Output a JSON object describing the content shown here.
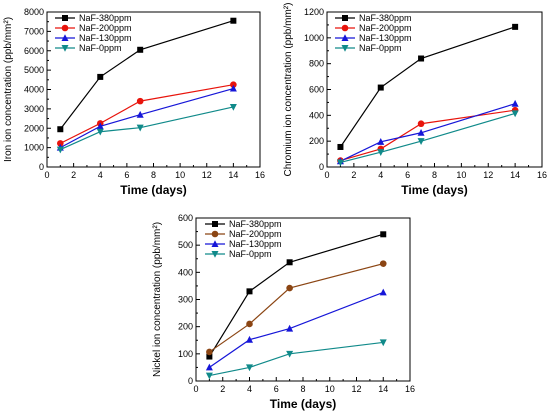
{
  "chart_data": [
    {
      "type": "line",
      "xlabel": "Time (days)",
      "ylabel": "Iron ion concentration (ppb/mm²)",
      "xlim": [
        0,
        16
      ],
      "ylim": [
        0,
        8000
      ],
      "xticks": [
        0,
        2,
        4,
        6,
        8,
        10,
        12,
        14,
        16
      ],
      "yticks": [
        0,
        1000,
        2000,
        3000,
        4000,
        5000,
        6000,
        7000,
        8000
      ],
      "legend_position": "top-left",
      "grid": false,
      "x": [
        1,
        4,
        7,
        14
      ],
      "series": [
        {
          "name": "NaF-380ppm",
          "values": [
            1950,
            4650,
            6050,
            7550
          ],
          "color": "#000000",
          "marker": "square"
        },
        {
          "name": "NaF-200ppm",
          "values": [
            1220,
            2250,
            3400,
            4250
          ],
          "color": "#e8140c",
          "marker": "circle"
        },
        {
          "name": "NaF-130ppm",
          "values": [
            1000,
            2100,
            2700,
            4050
          ],
          "color": "#1616d8",
          "marker": "triangle-up"
        },
        {
          "name": "NaF-0ppm",
          "values": [
            900,
            1820,
            2030,
            3100
          ],
          "color": "#108a8a",
          "marker": "triangle-down"
        }
      ]
    },
    {
      "type": "line",
      "xlabel": "Time (days)",
      "ylabel": "Chromium ion concentration (ppb/mm²)",
      "xlim": [
        0,
        16
      ],
      "ylim": [
        0,
        1200
      ],
      "xticks": [
        0,
        2,
        4,
        6,
        8,
        10,
        12,
        14,
        16
      ],
      "yticks": [
        0,
        200,
        400,
        600,
        800,
        1000,
        1200
      ],
      "legend_position": "top-left",
      "grid": false,
      "x": [
        1,
        4,
        7,
        14
      ],
      "series": [
        {
          "name": "NaF-380ppm",
          "values": [
            155,
            615,
            840,
            1085
          ],
          "color": "#000000",
          "marker": "square"
        },
        {
          "name": "NaF-200ppm",
          "values": [
            50,
            140,
            335,
            440
          ],
          "color": "#e8140c",
          "marker": "circle"
        },
        {
          "name": "NaF-130ppm",
          "values": [
            45,
            195,
            265,
            490
          ],
          "color": "#1616d8",
          "marker": "triangle-up"
        },
        {
          "name": "NaF-0ppm",
          "values": [
            35,
            115,
            200,
            415
          ],
          "color": "#108a8a",
          "marker": "triangle-down"
        }
      ]
    },
    {
      "type": "line",
      "xlabel": "Time (days)",
      "ylabel": "Nickel ion concentration (ppb/mm²)",
      "xlim": [
        0,
        16
      ],
      "ylim": [
        0,
        600
      ],
      "xticks": [
        0,
        2,
        4,
        6,
        8,
        10,
        12,
        14,
        16
      ],
      "yticks": [
        0,
        100,
        200,
        300,
        400,
        500,
        600
      ],
      "legend_position": "top-left",
      "grid": false,
      "x": [
        1,
        4,
        7,
        14
      ],
      "series": [
        {
          "name": "NaF-380ppm",
          "values": [
            90,
            330,
            437,
            540
          ],
          "color": "#000000",
          "marker": "square"
        },
        {
          "name": "NaF-200ppm",
          "values": [
            107,
            210,
            342,
            432
          ],
          "color": "#8b4513",
          "marker": "circle"
        },
        {
          "name": "NaF-130ppm",
          "values": [
            50,
            152,
            193,
            326
          ],
          "color": "#1616d8",
          "marker": "triangle-up"
        },
        {
          "name": "NaF-0ppm",
          "values": [
            20,
            50,
            100,
            142
          ],
          "color": "#108a8a",
          "marker": "triangle-down"
        }
      ]
    }
  ]
}
